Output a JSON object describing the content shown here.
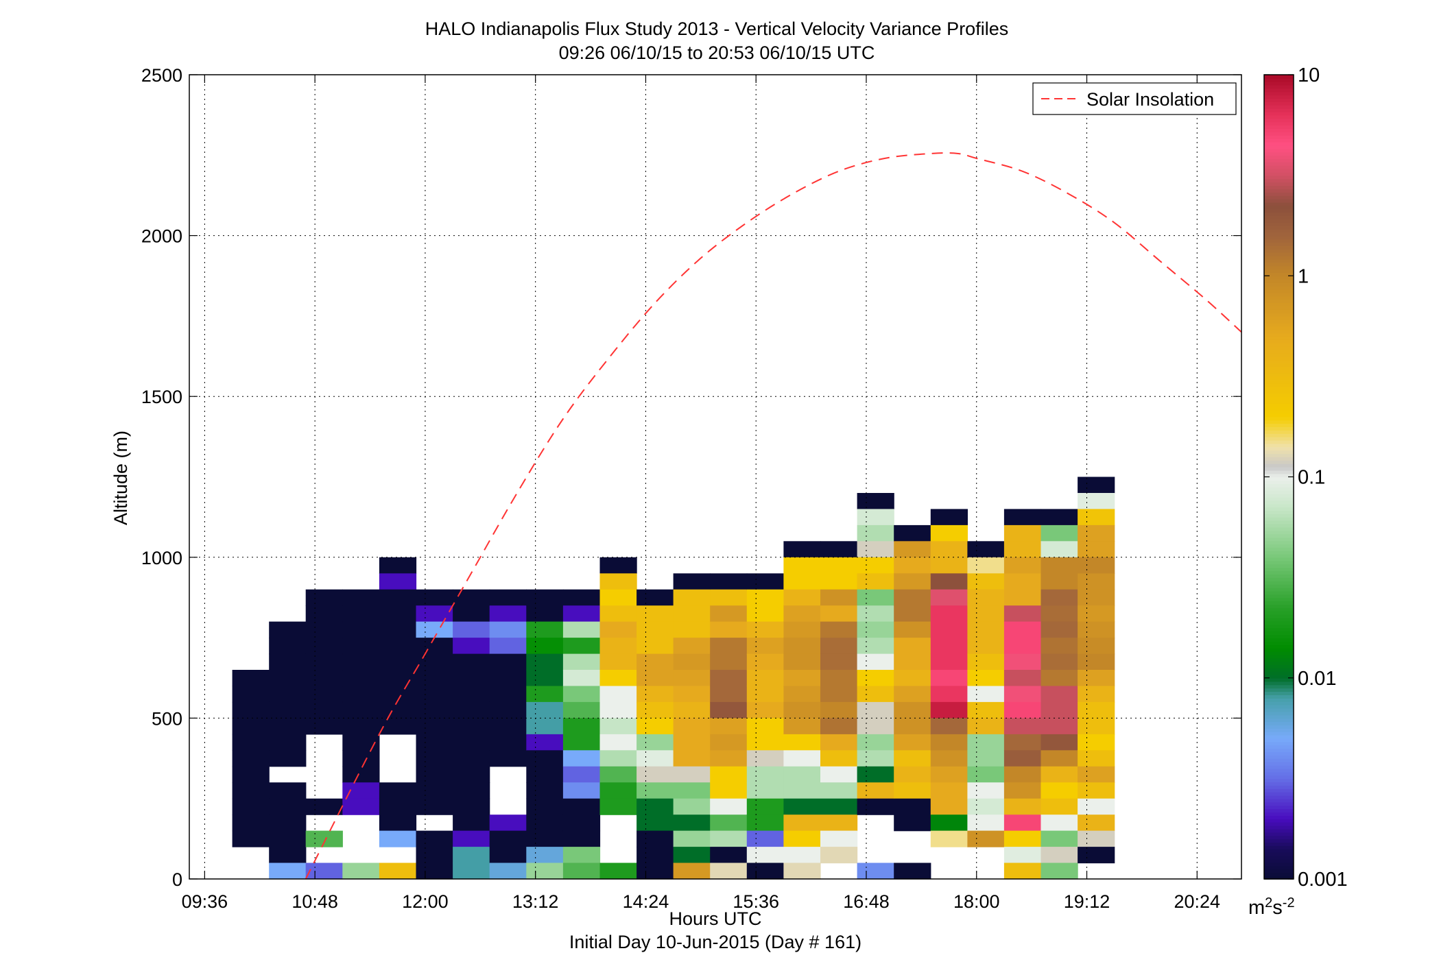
{
  "chart_data": {
    "type": "heatmap",
    "title": "HALO Indianapolis Flux Study 2013 - Vertical Velocity Variance Profiles",
    "subtitle": "09:26 06/10/15 to 20:53 06/10/15  UTC",
    "xlabel": "Hours UTC",
    "xlabel2": "Initial Day 10-Jun-2015 (Day # 161)",
    "ylabel": "Altitude (m)",
    "x_ticks": [
      "09:36",
      "10:48",
      "12:00",
      "13:12",
      "14:24",
      "15:36",
      "16:48",
      "18:00",
      "19:12",
      "20:24"
    ],
    "y_ticks": [
      "0",
      "500",
      "1000",
      "1500",
      "2000",
      "2500"
    ],
    "xlim_hours": [
      9.433,
      20.883
    ],
    "ylim": [
      0,
      2500
    ],
    "grid": true,
    "legend_position": "top-right",
    "colorbar": {
      "scale": "log",
      "range": [
        0.001,
        10
      ],
      "ticks": [
        "0.001",
        "0.01",
        "0.1",
        "1",
        "10"
      ],
      "unit": "m2s-2"
    },
    "cell_time_start_hours": 9.9,
    "cell_time_step_hours": 0.4,
    "cell_alt_step_m": 50,
    "columns": [
      {
        "top": 650,
        "v": [
          0.001,
          0.001,
          0.001,
          0.001,
          0.001,
          0.001,
          0.001,
          0.001,
          0.001,
          0.001,
          0.001
        ]
      },
      {
        "top": 800,
        "v": [
          0.001,
          0.001,
          0.001,
          0.001,
          0.001,
          0.001,
          0.001,
          0.001,
          0.001,
          null,
          0.001,
          0.001,
          0.001,
          0.001,
          0.001,
          0.005
        ]
      },
      {
        "top": 900,
        "v": [
          0.001,
          0.001,
          0.001,
          0.001,
          0.001,
          0.001,
          0.001,
          0.001,
          0.001,
          null,
          null,
          null,
          null,
          0.001,
          null,
          0.03,
          null,
          0.003
        ]
      },
      {
        "top": 900,
        "v": [
          0.001,
          0.001,
          0.001,
          0.001,
          0.001,
          0.001,
          0.001,
          0.001,
          0.001,
          0.001,
          0.001,
          0.001,
          0.002,
          0.002,
          null,
          null,
          null,
          0.05
        ]
      },
      {
        "top": 1000,
        "v": [
          0.001,
          0.002,
          0.001,
          0.001,
          0.001,
          0.001,
          0.001,
          0.001,
          0.001,
          0.001,
          0.001,
          null,
          null,
          null,
          0.001,
          0.001,
          0.001,
          0.005,
          null,
          0.3
        ]
      },
      {
        "top": 900,
        "v": [
          0.001,
          0.002,
          0.005,
          0.001,
          0.001,
          0.001,
          0.001,
          0.001,
          0.001,
          0.001,
          0.001,
          0.001,
          0.001,
          0.001,
          null,
          0.001,
          0.001,
          0.001
        ]
      },
      {
        "top": 900,
        "v": [
          0.001,
          0.001,
          0.003,
          0.002,
          0.001,
          0.001,
          0.001,
          0.001,
          0.001,
          0.001,
          0.001,
          0.001,
          0.001,
          0.001,
          0.001,
          0.002,
          0.008,
          0.008
        ]
      },
      {
        "top": 900,
        "v": [
          0.001,
          0.002,
          0.004,
          0.003,
          0.001,
          0.001,
          0.001,
          0.001,
          0.001,
          0.001,
          0.001,
          null,
          null,
          null,
          0.002,
          0.001,
          0.001,
          0.006
        ]
      },
      {
        "top": 900,
        "v": [
          0.001,
          0.001,
          0.02,
          0.015,
          0.01,
          0.01,
          0.02,
          0.008,
          0.008,
          0.002,
          0.001,
          0.001,
          0.001,
          0.001,
          0.001,
          0.001,
          0.006,
          0.05
        ]
      },
      {
        "top": 900,
        "v": [
          0.001,
          0.002,
          0.06,
          0.02,
          0.06,
          0.08,
          0.04,
          0.03,
          0.02,
          0.02,
          0.005,
          0.003,
          0.004,
          0.001,
          0.001,
          0.001,
          0.04,
          0.03
        ]
      },
      {
        "top": 1000,
        "v": [
          0.001,
          0.3,
          0.2,
          0.3,
          0.5,
          0.4,
          0.4,
          0.2,
          0.1,
          0.1,
          0.07,
          0.1,
          0.06,
          0.03,
          0.02,
          0.02,
          null,
          null,
          null,
          0.02
        ]
      },
      {
        "top": 900,
        "v": [
          0.001,
          0.3,
          0.3,
          0.3,
          0.6,
          0.6,
          0.4,
          0.3,
          0.2,
          0.05,
          0.09,
          0.12,
          0.04,
          0.01,
          0.01,
          0.001,
          0.001,
          0.001
        ]
      },
      {
        "top": 950,
        "v": [
          0.001,
          0.3,
          0.3,
          0.3,
          0.6,
          0.7,
          0.6,
          0.5,
          0.4,
          0.5,
          0.5,
          0.5,
          0.12,
          0.04,
          0.05,
          0.01,
          0.05,
          0.01,
          0.7
        ]
      },
      {
        "top": 950,
        "v": [
          0.001,
          0.3,
          0.7,
          0.5,
          1.2,
          1.2,
          1.5,
          1.5,
          2,
          0.6,
          0.7,
          0.6,
          0.2,
          0.2,
          0.1,
          0.03,
          0.06,
          0.001,
          0.13
        ]
      },
      {
        "top": 950,
        "v": [
          0.001,
          0.2,
          0.2,
          0.4,
          0.6,
          0.5,
          0.4,
          0.4,
          0.5,
          0.2,
          0.2,
          0.12,
          0.06,
          0.06,
          0.02,
          0.02,
          0.003,
          0.1,
          0.001
        ]
      },
      {
        "top": 1050,
        "v": [
          0.001,
          0.2,
          0.2,
          0.4,
          0.6,
          0.7,
          0.8,
          0.8,
          0.6,
          0.7,
          0.8,
          0.7,
          0.2,
          0.1,
          0.06,
          0.06,
          0.01,
          0.4,
          0.2,
          0.1,
          0.13
        ]
      },
      {
        "top": 1050,
        "v": [
          0.001,
          0.2,
          0.2,
          0.8,
          0.5,
          1.2,
          1.4,
          1.4,
          1.2,
          1.2,
          1,
          1.3,
          0.5,
          0.3,
          0.1,
          0.06,
          0.01,
          0.4,
          0.1,
          0.13
        ]
      },
      {
        "top": 1200,
        "v": [
          0.001,
          0.08,
          0.06,
          0.12,
          0.2,
          0.3,
          0.04,
          0.06,
          0.05,
          0.06,
          0.1,
          0.2,
          0.3,
          0.12,
          0.12,
          0.05,
          0.06,
          0.01,
          0.4,
          0.001,
          null,
          null,
          null,
          0.004
        ]
      },
      {
        "top": 1100,
        "v": [
          0.001,
          0.7,
          0.5,
          0.7,
          1.2,
          1.2,
          0.8,
          0.5,
          0.5,
          0.4,
          0.6,
          0.8,
          0.8,
          0.6,
          0.3,
          0.4,
          0.3,
          0.001,
          0.001,
          null,
          null,
          0.001
        ]
      },
      {
        "top": 1150,
        "v": [
          0.001,
          0.2,
          0.4,
          0.4,
          2.2,
          3.5,
          6,
          6,
          6,
          6,
          5,
          6,
          8,
          1.5,
          1,
          0.8,
          0.6,
          0.5,
          0.5,
          0.013,
          0.15
        ]
      },
      {
        "top": 1050,
        "v": [
          0.001,
          0.15,
          0.3,
          0.4,
          0.4,
          0.4,
          0.4,
          0.3,
          0.2,
          0.1,
          0.3,
          0.4,
          0.05,
          0.05,
          0.04,
          0.1,
          0.08,
          0.1,
          0.8
        ]
      },
      {
        "top": 1150,
        "v": [
          0.001,
          0.4,
          0.4,
          0.6,
          0.5,
          0.5,
          3,
          5,
          5,
          4,
          3,
          4,
          5,
          3,
          1.5,
          1.8,
          1,
          0.8,
          0.4,
          5,
          0.2,
          0.09,
          0.3
        ]
      },
      {
        "top": 1150,
        "v": [
          0.001,
          0.04,
          0.08,
          1,
          1,
          1.5,
          1.4,
          1.5,
          1.3,
          1.4,
          1.2,
          3,
          3,
          3,
          2,
          1,
          0.4,
          0.2,
          0.3,
          0.1,
          0.04,
          0.12,
          0.04
        ]
      },
      {
        "top": 1250,
        "v": [
          0.001,
          0.09,
          0.25,
          0.6,
          0.6,
          1,
          0.8,
          0.8,
          0.7,
          0.8,
          0.9,
          1,
          0.6,
          0.4,
          0.3,
          0.3,
          0.2,
          0.3,
          0.6,
          0.3,
          0.1,
          0.4,
          0.12,
          0.001
        ]
      }
    ],
    "solar_insolation_curve": {
      "name": "Solar Insolation",
      "style": "red-dashed",
      "x_hours": [
        10.7,
        11.5,
        12.0,
        12.5,
        13.0,
        13.5,
        14.0,
        14.5,
        15.0,
        15.5,
        16.0,
        16.5,
        17.0,
        17.5,
        17.8,
        18.0,
        18.5,
        19.0,
        19.5,
        20.0,
        20.5,
        20.883
      ],
      "y": [
        0,
        450,
        700,
        950,
        1200,
        1430,
        1620,
        1790,
        1930,
        2040,
        2130,
        2200,
        2240,
        2255,
        2255,
        2240,
        2200,
        2130,
        2040,
        1920,
        1800,
        1700
      ]
    }
  }
}
